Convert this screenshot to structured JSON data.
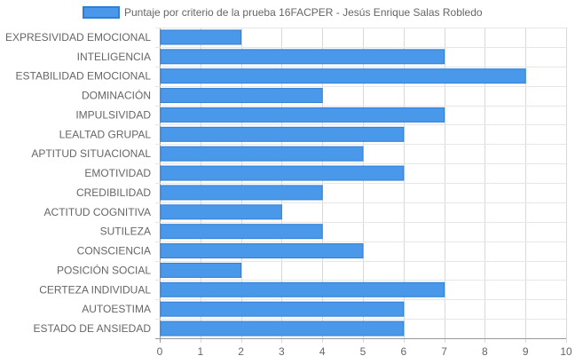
{
  "chart_data": {
    "type": "bar",
    "orientation": "horizontal",
    "categories": [
      "EXPRESIVIDAD EMOCIONAL",
      "INTELIGENCIA",
      "ESTABILIDAD EMOCIONAL",
      "DOMINACIÓN",
      "IMPULSIVIDAD",
      "LEALTAD GRUPAL",
      "APTITUD SITUACIONAL",
      "EMOTIVIDAD",
      "CREDIBILIDAD",
      "ACTITUD COGNITIVA",
      "SUTILEZA",
      "CONSCIENCIA",
      "POSICIÓN SOCIAL",
      "CERTEZA INDIVIDUAL",
      "AUTOESTIMA",
      "ESTADO DE ANSIEDAD"
    ],
    "series": [
      {
        "name": "Puntaje por criterio de la prueba 16FACPER - Jesús Enrique Salas Robledo",
        "values": [
          2,
          7,
          9,
          4,
          7,
          6,
          5,
          6,
          4,
          3,
          4,
          5,
          2,
          7,
          6,
          6
        ],
        "color": "#4a98e9",
        "border_color": "#2f7fd6"
      }
    ],
    "xlim": [
      0,
      10
    ],
    "x_ticks": [
      "0",
      "1",
      "2",
      "3",
      "4",
      "5",
      "6",
      "7",
      "8",
      "9",
      "10"
    ],
    "grid": true,
    "legend_position": "top"
  }
}
